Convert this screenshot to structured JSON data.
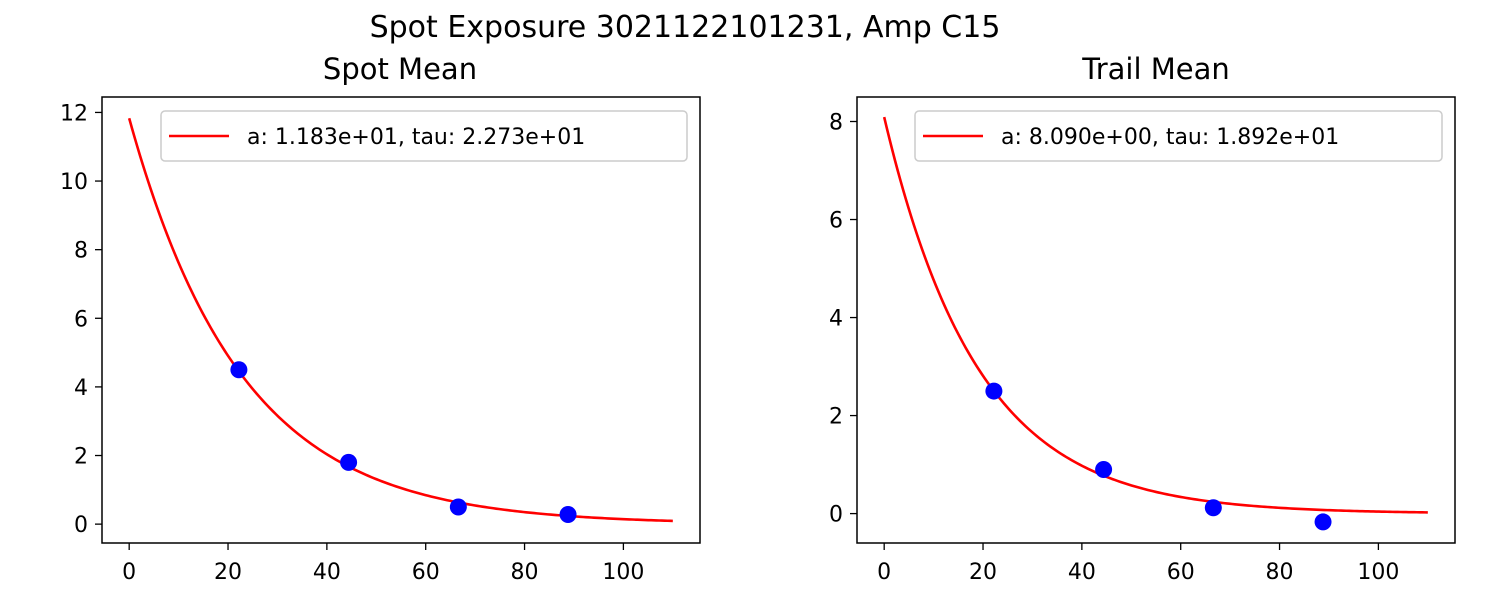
{
  "figure": {
    "suptitle": "Spot Exposure 3021122101231, Amp C15"
  },
  "chart_data": [
    {
      "type": "scatter",
      "title": "Spot Mean",
      "xlabel": "",
      "ylabel": "",
      "xlim": [
        -5.5,
        115.5
      ],
      "ylim": [
        -0.55,
        12.45
      ],
      "xticks": [
        0,
        20,
        40,
        60,
        80,
        100
      ],
      "yticks": [
        0,
        2,
        4,
        6,
        8,
        10,
        12
      ],
      "grid": false,
      "legend_position": "top-right",
      "points": {
        "color": "#0000ff",
        "x": [
          22.2,
          44.4,
          66.6,
          88.8
        ],
        "y": [
          4.5,
          1.8,
          0.5,
          0.28
        ]
      },
      "fit": {
        "color": "#ff0000",
        "label": "a: 1.183e+01, tau: 2.273e+01",
        "a": 11.83,
        "tau": 22.73,
        "x_range": [
          0,
          110
        ]
      }
    },
    {
      "type": "scatter",
      "title": "Trail Mean",
      "xlabel": "",
      "ylabel": "",
      "xlim": [
        -5.5,
        115.5
      ],
      "ylim": [
        -0.6,
        8.5
      ],
      "xticks": [
        0,
        20,
        40,
        60,
        80,
        100
      ],
      "yticks": [
        0,
        2,
        4,
        6,
        8
      ],
      "grid": false,
      "legend_position": "top-right",
      "points": {
        "color": "#0000ff",
        "x": [
          22.2,
          44.4,
          66.6,
          88.8
        ],
        "y": [
          2.5,
          0.9,
          0.12,
          -0.17
        ]
      },
      "fit": {
        "color": "#ff0000",
        "label": "a: 8.090e+00, tau: 1.892e+01",
        "a": 8.09,
        "tau": 18.92,
        "x_range": [
          0,
          110
        ]
      }
    }
  ]
}
